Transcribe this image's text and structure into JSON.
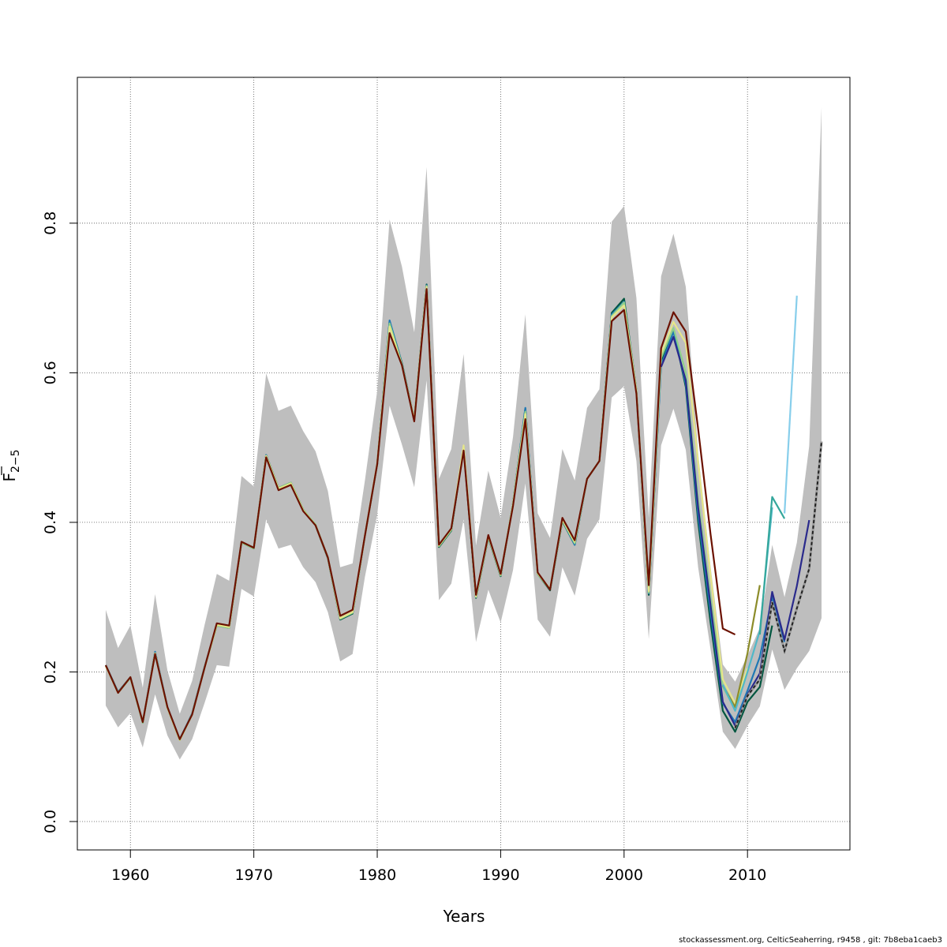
{
  "chart_data": {
    "type": "line",
    "xlabel": "Years",
    "ylabel_main": "F",
    "ylabel_sub": "2−5",
    "xlim": [
      1955.7,
      2018.3
    ],
    "ylim": [
      -0.038,
      0.995
    ],
    "xticks": [
      1960,
      1970,
      1980,
      1990,
      2000,
      2010
    ],
    "yticks": [
      0.0,
      0.2,
      0.4,
      0.6,
      0.8
    ],
    "ytick_labels": [
      "0.0",
      "0.2",
      "0.4",
      "0.6",
      "0.8"
    ],
    "grid": true,
    "confidence_band": {
      "color": "#bebebe",
      "x": [
        1958,
        1959,
        1960,
        1961,
        1962,
        1963,
        1964,
        1965,
        1966,
        1967,
        1968,
        1969,
        1970,
        1971,
        1972,
        1973,
        1974,
        1975,
        1976,
        1977,
        1978,
        1979,
        1980,
        1981,
        1982,
        1983,
        1984,
        1985,
        1986,
        1987,
        1988,
        1989,
        1990,
        1991,
        1992,
        1993,
        1994,
        1995,
        1996,
        1997,
        1998,
        1999,
        2000,
        2001,
        2002,
        2003,
        2004,
        2005,
        2006,
        2007,
        2008,
        2009,
        2010,
        2011,
        2012,
        2013,
        2014,
        2015,
        2016
      ],
      "upper": [
        0.283,
        0.232,
        0.262,
        0.179,
        0.304,
        0.202,
        0.144,
        0.188,
        0.262,
        0.331,
        0.322,
        0.462,
        0.448,
        0.599,
        0.549,
        0.556,
        0.522,
        0.495,
        0.442,
        0.34,
        0.345,
        0.456,
        0.576,
        0.805,
        0.742,
        0.654,
        0.875,
        0.458,
        0.498,
        0.625,
        0.369,
        0.469,
        0.406,
        0.514,
        0.678,
        0.412,
        0.379,
        0.498,
        0.456,
        0.553,
        0.578,
        0.802,
        0.823,
        0.7,
        0.406,
        0.729,
        0.786,
        0.715,
        0.493,
        0.342,
        0.21,
        0.187,
        0.222,
        0.259,
        0.37,
        0.3,
        0.373,
        0.502,
        0.955
      ],
      "lower": [
        0.155,
        0.126,
        0.145,
        0.099,
        0.17,
        0.115,
        0.083,
        0.11,
        0.158,
        0.209,
        0.207,
        0.311,
        0.301,
        0.404,
        0.365,
        0.37,
        0.34,
        0.32,
        0.28,
        0.214,
        0.224,
        0.327,
        0.411,
        0.556,
        0.504,
        0.447,
        0.59,
        0.296,
        0.318,
        0.404,
        0.24,
        0.31,
        0.266,
        0.336,
        0.452,
        0.27,
        0.247,
        0.34,
        0.302,
        0.378,
        0.404,
        0.567,
        0.582,
        0.482,
        0.244,
        0.503,
        0.552,
        0.497,
        0.34,
        0.231,
        0.12,
        0.097,
        0.128,
        0.154,
        0.23,
        0.176,
        0.205,
        0.228,
        0.272
      ]
    },
    "series": [
      {
        "color": "#00563f",
        "x": [
          1958,
          1959,
          1960,
          1961,
          1962,
          1963,
          1964,
          1965,
          1966,
          1967,
          1968,
          1969,
          1970,
          1971,
          1972,
          1973,
          1974,
          1975,
          1976,
          1977,
          1978,
          1979,
          1980,
          1981,
          1982,
          1983,
          1984,
          1985,
          1986,
          1987,
          1988,
          1989,
          1990,
          1991,
          1992,
          1993,
          1994,
          1995,
          1996,
          1997,
          1998,
          1999,
          2000,
          2001,
          2002,
          2003,
          2004,
          2005,
          2006,
          2007,
          2008,
          2009,
          2010,
          2011,
          2012
        ],
        "y": [
          0.209,
          0.173,
          0.193,
          0.132,
          0.226,
          0.152,
          0.109,
          0.144,
          0.206,
          0.262,
          0.259,
          0.373,
          0.365,
          0.49,
          0.446,
          0.453,
          0.417,
          0.396,
          0.352,
          0.27,
          0.278,
          0.382,
          0.478,
          0.669,
          0.613,
          0.537,
          0.718,
          0.367,
          0.389,
          0.5,
          0.299,
          0.38,
          0.328,
          0.425,
          0.552,
          0.331,
          0.309,
          0.402,
          0.37,
          0.458,
          0.482,
          0.68,
          0.699,
          0.576,
          0.303,
          0.614,
          0.658,
          0.581,
          0.401,
          0.267,
          0.148,
          0.12,
          0.16,
          0.18,
          0.262
        ]
      },
      {
        "color": "#1f78b4",
        "x": [
          1958,
          1959,
          1960,
          1961,
          1962,
          1963,
          1964,
          1965,
          1966,
          1967,
          1968,
          1969,
          1970,
          1971,
          1972,
          1973,
          1974,
          1975,
          1976,
          1977,
          1978,
          1979,
          1980,
          1981,
          1982,
          1983,
          1984,
          1985,
          1986,
          1987,
          1988,
          1989,
          1990,
          1991,
          1992,
          1993,
          1994,
          1995,
          1996,
          1997,
          1998,
          1999,
          2000,
          2001,
          2002,
          2003,
          2004,
          2005,
          2006,
          2007,
          2008,
          2009,
          2010,
          2011,
          2012,
          2013
        ],
        "y": [
          0.209,
          0.173,
          0.193,
          0.133,
          0.227,
          0.153,
          0.11,
          0.144,
          0.206,
          0.263,
          0.26,
          0.374,
          0.366,
          0.49,
          0.445,
          0.452,
          0.416,
          0.396,
          0.353,
          0.271,
          0.279,
          0.382,
          0.478,
          0.67,
          0.612,
          0.537,
          0.717,
          0.368,
          0.39,
          0.501,
          0.3,
          0.381,
          0.329,
          0.425,
          0.553,
          0.332,
          0.31,
          0.403,
          0.37,
          0.458,
          0.482,
          0.678,
          0.695,
          0.575,
          0.305,
          0.61,
          0.655,
          0.585,
          0.41,
          0.28,
          0.158,
          0.133,
          0.175,
          0.22,
          0.3,
          0.24
        ]
      },
      {
        "color": "#8fd08a",
        "x": [
          1958,
          1959,
          1960,
          1961,
          1962,
          1963,
          1964,
          1965,
          1966,
          1967,
          1968,
          1969,
          1970,
          1971,
          1972,
          1973,
          1974,
          1975,
          1976,
          1977,
          1978,
          1979,
          1980,
          1981,
          1982,
          1983,
          1984,
          1985,
          1986,
          1987,
          1988,
          1989,
          1990,
          1991,
          1992,
          1993,
          1994,
          1995,
          1996,
          1997,
          1998,
          1999,
          2000,
          2001,
          2002,
          2003,
          2004,
          2005,
          2006,
          2007,
          2008,
          2009,
          2010
        ],
        "y": [
          0.208,
          0.172,
          0.192,
          0.132,
          0.225,
          0.152,
          0.109,
          0.143,
          0.205,
          0.262,
          0.259,
          0.373,
          0.365,
          0.489,
          0.446,
          0.453,
          0.417,
          0.397,
          0.353,
          0.271,
          0.279,
          0.382,
          0.478,
          0.666,
          0.611,
          0.537,
          0.716,
          0.368,
          0.39,
          0.502,
          0.3,
          0.381,
          0.329,
          0.425,
          0.548,
          0.331,
          0.31,
          0.403,
          0.372,
          0.458,
          0.482,
          0.676,
          0.694,
          0.576,
          0.306,
          0.62,
          0.66,
          0.6,
          0.43,
          0.3,
          0.18,
          0.15,
          0.2
        ]
      },
      {
        "color": "#e6e68a",
        "x": [
          1958,
          1959,
          1960,
          1961,
          1962,
          1963,
          1964,
          1965,
          1966,
          1967,
          1968,
          1969,
          1970,
          1971,
          1972,
          1973,
          1974,
          1975,
          1976,
          1977,
          1978,
          1979,
          1980,
          1981,
          1982,
          1983,
          1984,
          1985,
          1986,
          1987,
          1988,
          1989,
          1990,
          1991,
          1992,
          1993,
          1994,
          1995,
          1996,
          1997,
          1998,
          1999,
          2000,
          2001,
          2002,
          2003,
          2004,
          2005,
          2006,
          2007,
          2008,
          2009,
          2010
        ],
        "y": [
          0.208,
          0.172,
          0.193,
          0.133,
          0.225,
          0.152,
          0.109,
          0.143,
          0.205,
          0.263,
          0.26,
          0.374,
          0.366,
          0.489,
          0.445,
          0.452,
          0.416,
          0.396,
          0.353,
          0.272,
          0.28,
          0.382,
          0.479,
          0.662,
          0.61,
          0.537,
          0.715,
          0.369,
          0.391,
          0.503,
          0.301,
          0.382,
          0.33,
          0.424,
          0.545,
          0.332,
          0.311,
          0.404,
          0.374,
          0.458,
          0.482,
          0.674,
          0.69,
          0.575,
          0.308,
          0.625,
          0.668,
          0.64,
          0.48,
          0.33,
          0.19,
          0.158,
          0.205
        ]
      },
      {
        "color": "#8c8c2a",
        "x": [
          2008,
          2009,
          2010,
          2011
        ],
        "y": [
          0.182,
          0.153,
          0.225,
          0.316
        ]
      },
      {
        "color": "#4fb8c8",
        "x": [
          2008,
          2009,
          2010,
          2011,
          2012
        ],
        "y": [
          0.183,
          0.148,
          0.2,
          0.255,
          0.42
        ]
      },
      {
        "color": "#35a79c",
        "x": [
          2011,
          2012,
          2013
        ],
        "y": [
          0.25,
          0.434,
          0.405
        ]
      },
      {
        "color": "#87ceeb",
        "x": [
          2013,
          2014
        ],
        "y": [
          0.412,
          0.703
        ]
      },
      {
        "color": "#2a2a8c",
        "x": [
          2003,
          2004,
          2005,
          2006,
          2007,
          2008,
          2009,
          2010,
          2011,
          2012,
          2013,
          2014,
          2015
        ],
        "y": [
          0.608,
          0.648,
          0.59,
          0.42,
          0.29,
          0.16,
          0.128,
          0.17,
          0.198,
          0.307,
          0.243,
          0.315,
          0.403
        ]
      },
      {
        "color": "#222222",
        "dash": true,
        "x": [
          2009,
          2010,
          2011,
          2012,
          2013,
          2014,
          2015,
          2016
        ],
        "y": [
          0.125,
          0.168,
          0.19,
          0.293,
          0.228,
          0.285,
          0.338,
          0.508
        ]
      },
      {
        "color": "#6b1100",
        "x": [
          1958,
          1959,
          1960,
          1961,
          1962,
          1963,
          1964,
          1965,
          1966,
          1967,
          1968,
          1969,
          1970,
          1971,
          1972,
          1973,
          1974,
          1975,
          1976,
          1977,
          1978,
          1979,
          1980,
          1981,
          1982,
          1983,
          1984,
          1985,
          1986,
          1987,
          1988,
          1989,
          1990,
          1991,
          1992,
          1993,
          1994,
          1995,
          1996,
          1997,
          1998,
          1999,
          2000,
          2001,
          2002,
          2003,
          2004,
          2005,
          2006,
          2007,
          2008,
          2009
        ],
        "y": [
          0.209,
          0.172,
          0.193,
          0.133,
          0.224,
          0.153,
          0.11,
          0.143,
          0.205,
          0.265,
          0.262,
          0.374,
          0.366,
          0.487,
          0.443,
          0.45,
          0.415,
          0.396,
          0.353,
          0.275,
          0.283,
          0.382,
          0.478,
          0.653,
          0.61,
          0.535,
          0.712,
          0.37,
          0.392,
          0.496,
          0.303,
          0.383,
          0.331,
          0.422,
          0.538,
          0.333,
          0.31,
          0.406,
          0.376,
          0.458,
          0.482,
          0.669,
          0.684,
          0.572,
          0.316,
          0.633,
          0.681,
          0.655,
          0.525,
          0.385,
          0.258,
          0.25
        ]
      }
    ]
  },
  "footer": {
    "credit": "stockassessment.org, CelticSeaherring, r9458 , git: 7b8eba1caeb3"
  }
}
